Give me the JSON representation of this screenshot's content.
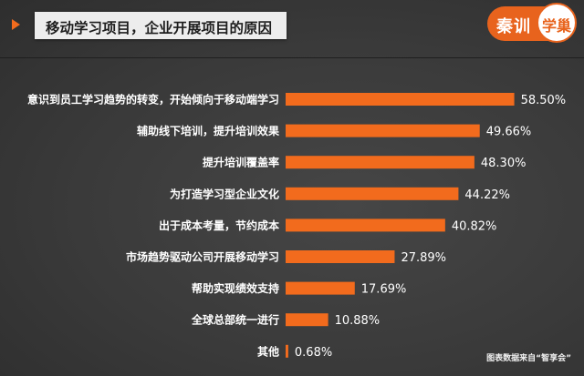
{
  "header": {
    "title": "移动学习项目，企业开展项目的原因"
  },
  "logo": {
    "part1": "秦训",
    "part2": "学巢"
  },
  "source_note": "图表数据来自“智享会”",
  "colors": {
    "bar": "#f26b1d",
    "background": "#3a3a3a",
    "label_text": "#ffffff"
  },
  "chart_data": {
    "type": "bar",
    "orientation": "horizontal",
    "title": "移动学习项目，企业开展项目的原因",
    "unit": "%",
    "categories": [
      "意识到员工学习趋势的转变，开始倾向于移动端学习",
      "辅助线下培训，提升培训效果",
      "提升培训覆盖率",
      "为打造学习型企业文化",
      "出于成本考量，节约成本",
      "市场趋势驱动公司开展移动学习",
      "帮助实现绩效支持",
      "全球总部统一进行",
      "其他"
    ],
    "values": [
      58.5,
      49.66,
      48.3,
      44.22,
      40.82,
      27.89,
      17.69,
      10.88,
      0.68
    ],
    "value_labels": [
      "58.50%",
      "49.66%",
      "48.30%",
      "44.22%",
      "40.82%",
      "27.89%",
      "17.69%",
      "10.88%",
      "0.68%"
    ],
    "xlim": [
      0,
      60
    ],
    "grid": false,
    "legend": "none"
  }
}
